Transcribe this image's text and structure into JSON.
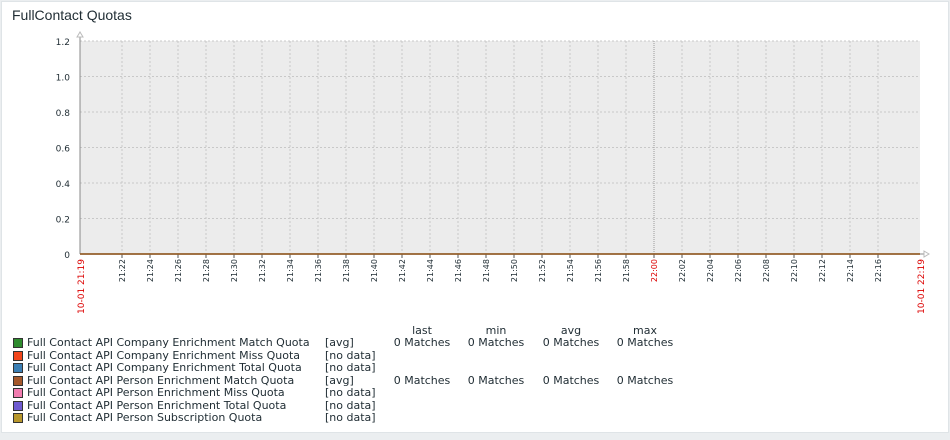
{
  "widget": {
    "title": "FullContact Quotas"
  },
  "chart_data": {
    "type": "line",
    "title": "FullContact Quotas",
    "ylim": [
      0,
      1.2
    ],
    "y_ticks": [
      "1.2",
      "1.0",
      "0.8",
      "0.6",
      "0.4",
      "0.2",
      "0"
    ],
    "x_range": [
      "10-01 21:19",
      "10-01 22:19"
    ],
    "x_ticks": [
      "21:22",
      "21:24",
      "21:26",
      "21:28",
      "21:30",
      "21:32",
      "21:34",
      "21:36",
      "21:38",
      "21:40",
      "21:42",
      "21:44",
      "21:46",
      "21:48",
      "21:50",
      "21:52",
      "21:54",
      "21:56",
      "21:58",
      "22:00",
      "22:02",
      "22:04",
      "22:06",
      "22:08",
      "22:10",
      "22:12",
      "22:14",
      "22:16"
    ],
    "x_tick_minutes": [
      3,
      5,
      7,
      9,
      11,
      13,
      15,
      17,
      19,
      21,
      23,
      25,
      27,
      29,
      31,
      33,
      35,
      37,
      39,
      41,
      43,
      45,
      47,
      49,
      51,
      53,
      55,
      57
    ],
    "highlight_tick": "22:00",
    "grid": true,
    "series": [
      {
        "name": "Full Contact API Company Enrichment Match Quota",
        "agg": "[avg]",
        "color": "#2e8b2e",
        "last": "0 Matches",
        "min": "0 Matches",
        "avg": "0 Matches",
        "max": "0 Matches",
        "x": [
          0,
          60
        ],
        "values": [
          0,
          0
        ]
      },
      {
        "name": "Full Contact API Company Enrichment Miss Quota",
        "agg": "[no data]",
        "color": "#f2461c",
        "last": "",
        "min": "",
        "avg": "",
        "max": "",
        "values": []
      },
      {
        "name": "Full Contact API Company Enrichment Total Quota",
        "agg": "[no data]",
        "color": "#3b7fb5",
        "last": "",
        "min": "",
        "avg": "",
        "max": "",
        "values": []
      },
      {
        "name": "Full Contact API Person Enrichment Match Quota",
        "agg": "[avg]",
        "color": "#a5582b",
        "last": "0 Matches",
        "min": "0 Matches",
        "avg": "0 Matches",
        "max": "0 Matches",
        "x": [
          0,
          60
        ],
        "values": [
          0,
          0
        ]
      },
      {
        "name": "Full Contact API Person Enrichment Miss Quota",
        "agg": "[no data]",
        "color": "#f27cb0",
        "last": "",
        "min": "",
        "avg": "",
        "max": "",
        "values": []
      },
      {
        "name": "Full Contact API Person Enrichment Total Quota",
        "agg": "[no data]",
        "color": "#6f5bd1",
        "last": "",
        "min": "",
        "avg": "",
        "max": "",
        "values": []
      },
      {
        "name": "Full Contact API Person Subscription Quota",
        "agg": "[no data]",
        "color": "#b8972c",
        "last": "",
        "min": "",
        "avg": "",
        "max": "",
        "values": []
      }
    ]
  },
  "legend": {
    "headers": {
      "last": "last",
      "min": "min",
      "avg": "avg",
      "max": "max"
    }
  }
}
